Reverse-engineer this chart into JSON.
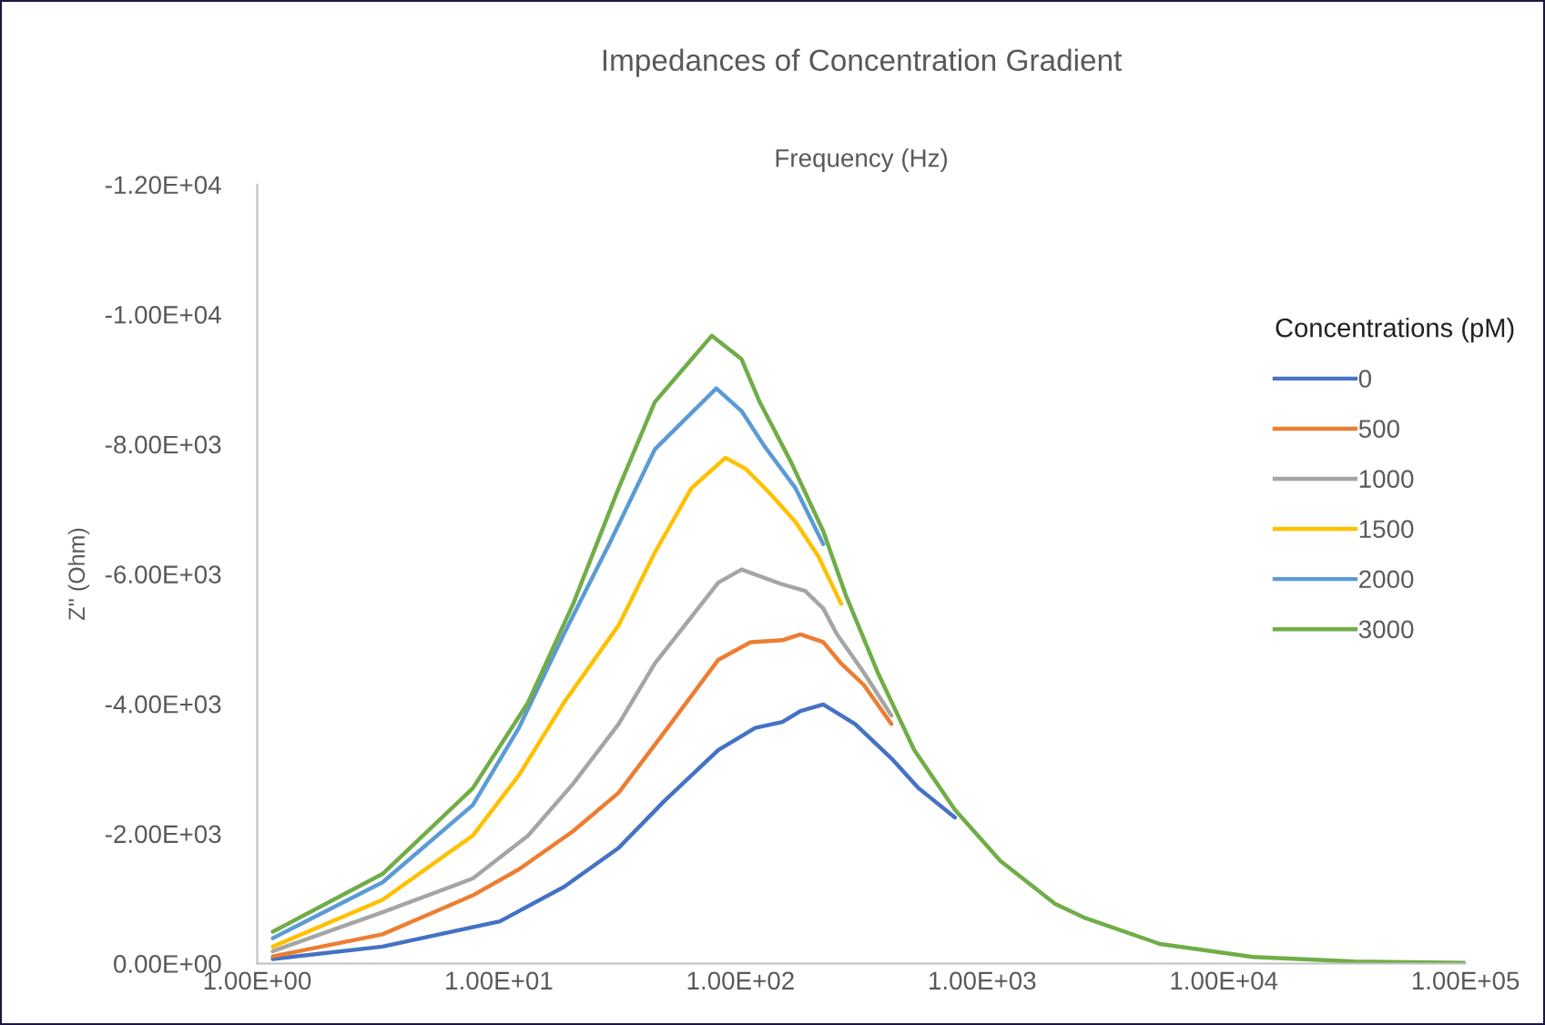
{
  "chart_data": {
    "type": "line",
    "title": "Impedances of Concentration Gradient",
    "xlabel": "Frequency (Hz)",
    "ylabel": "Z'' (Ohm)",
    "legend_title": "Concentrations (pM)",
    "log": "x",
    "grid": false,
    "legend": "right",
    "marker": "none",
    "line_style": "solid",
    "xlim": [
      1,
      100000
    ],
    "xticks": [
      {
        "value": 1,
        "label": "1.00E+00"
      },
      {
        "value": 10,
        "label": "1.00E+01"
      },
      {
        "value": 100,
        "label": "1.00E+02"
      },
      {
        "value": 1000,
        "label": "1.00E+03"
      },
      {
        "value": 10000,
        "label": "1.00E+04"
      },
      {
        "value": 100000,
        "label": "1.00E+05"
      }
    ],
    "ylim": [
      0,
      -12000
    ],
    "yticks": [
      {
        "value": 0,
        "label": "0.00E+00"
      },
      {
        "value": -2000,
        "label": "-2.00E+03"
      },
      {
        "value": -4000,
        "label": "-4.00E+03"
      },
      {
        "value": -6000,
        "label": "-6.00E+03"
      },
      {
        "value": -8000,
        "label": "-8.00E+03"
      },
      {
        "value": -10000,
        "label": "-1.00E+04"
      },
      {
        "value": -12000,
        "label": "-1.20E+04"
      }
    ],
    "series": [
      {
        "name": "0",
        "color": "#4472c4",
        "x": [
          1.16,
          3.3,
          10.1,
          18.6,
          31.3,
          48.3,
          81,
          115,
          149,
          177,
          220,
          298,
          421,
          546,
          771
        ],
        "values": [
          -70,
          -260,
          -650,
          -1180,
          -1780,
          -2500,
          -3290,
          -3630,
          -3720,
          -3890,
          -3990,
          -3690,
          -3160,
          -2700,
          -2250
        ]
      },
      {
        "name": "500",
        "color": "#ed7d31",
        "x": [
          1.16,
          3.3,
          7.8,
          12.1,
          20.3,
          31.3,
          48.3,
          81,
          110,
          149,
          177,
          220,
          261,
          324,
          421
        ],
        "values": [
          -110,
          -450,
          -1050,
          -1450,
          -2040,
          -2630,
          -3560,
          -4680,
          -4950,
          -4980,
          -5070,
          -4950,
          -4620,
          -4290,
          -3690
        ]
      },
      {
        "name": "1000",
        "color": "#a5a5a5",
        "x": [
          1.16,
          3.3,
          7.8,
          13.2,
          20.3,
          31.3,
          44.2,
          81,
          101,
          149,
          185,
          220,
          250,
          324,
          421
        ],
        "values": [
          -190,
          -790,
          -1310,
          -1970,
          -2770,
          -3690,
          -4620,
          -5870,
          -6070,
          -5840,
          -5740,
          -5470,
          -5080,
          -4480,
          -3820
        ]
      },
      {
        "name": "1500",
        "color": "#ffc000",
        "x": [
          1.16,
          3.3,
          7.8,
          12.1,
          18.6,
          31.3,
          44.2,
          62.6,
          86.6,
          105,
          131,
          169,
          210,
          261
        ],
        "values": [
          -260,
          -980,
          -1970,
          -2900,
          -4020,
          -5210,
          -6330,
          -7320,
          -7790,
          -7620,
          -7260,
          -6800,
          -6270,
          -5540
        ]
      },
      {
        "name": "2000",
        "color": "#5b9bd5",
        "x": [
          1.16,
          3.3,
          7.8,
          12.1,
          18.6,
          28.7,
          44.2,
          79.4,
          101,
          125,
          169,
          220
        ],
        "values": [
          -390,
          -1250,
          -2440,
          -3630,
          -5080,
          -6470,
          -7920,
          -8860,
          -8510,
          -7980,
          -7320,
          -6460
        ]
      },
      {
        "name": "3000",
        "color": "#70ad47",
        "x": [
          1.16,
          3.3,
          7.8,
          13.2,
          20.3,
          31.3,
          44.2,
          76,
          101,
          120,
          162,
          220,
          273,
          370,
          523,
          771,
          1190,
          2000,
          2630,
          5450,
          13200,
          34600,
          100000
        ],
        "values": [
          -490,
          -1380,
          -2700,
          -4020,
          -5540,
          -7320,
          -8650,
          -9670,
          -9310,
          -8650,
          -7720,
          -6660,
          -5670,
          -4480,
          -3290,
          -2370,
          -1580,
          -920,
          -710,
          -300,
          -100,
          -30,
          -10
        ]
      }
    ]
  }
}
